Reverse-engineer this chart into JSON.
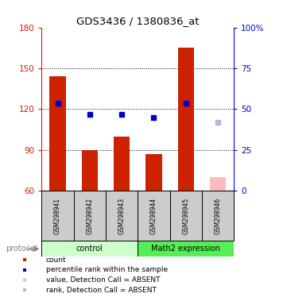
{
  "title": "GDS3436 / 1380836_at",
  "samples": [
    "GSM298941",
    "GSM298942",
    "GSM298943",
    "GSM298944",
    "GSM298945",
    "GSM298946"
  ],
  "group_labels": [
    "control",
    "Math2 expression"
  ],
  "group_colors": [
    "#ccffcc",
    "#55ee55"
  ],
  "bar_values": [
    144,
    90,
    100,
    87,
    165,
    70
  ],
  "bar_colors": [
    "#cc2200",
    "#cc2200",
    "#cc2200",
    "#cc2200",
    "#cc2200",
    "#ffbbbb"
  ],
  "rank_values": [
    124,
    116,
    116,
    114,
    124,
    110
  ],
  "rank_colors": [
    "#0000cc",
    "#0000cc",
    "#0000cc",
    "#0000cc",
    "#0000cc",
    "#aabbdd"
  ],
  "ylim_left": [
    60,
    180
  ],
  "ylim_right": [
    0,
    100
  ],
  "yticks_left": [
    60,
    90,
    120,
    150,
    180
  ],
  "yticks_right": [
    0,
    25,
    50,
    75,
    100
  ],
  "ytick_labels_right": [
    "0",
    "25",
    "50",
    "75",
    "100%"
  ],
  "grid_yticks": [
    90,
    120,
    150
  ],
  "left_axis_color": "#cc2200",
  "right_axis_color": "#0000cc",
  "sample_box_color": "#cccccc",
  "legend_items": [
    {
      "color": "#cc2200",
      "label": "count"
    },
    {
      "color": "#0000cc",
      "label": "percentile rank within the sample"
    },
    {
      "color": "#ffbbbb",
      "label": "value, Detection Call = ABSENT"
    },
    {
      "color": "#aabbdd",
      "label": "rank, Detection Call = ABSENT"
    }
  ],
  "protocol_label": "protocol"
}
